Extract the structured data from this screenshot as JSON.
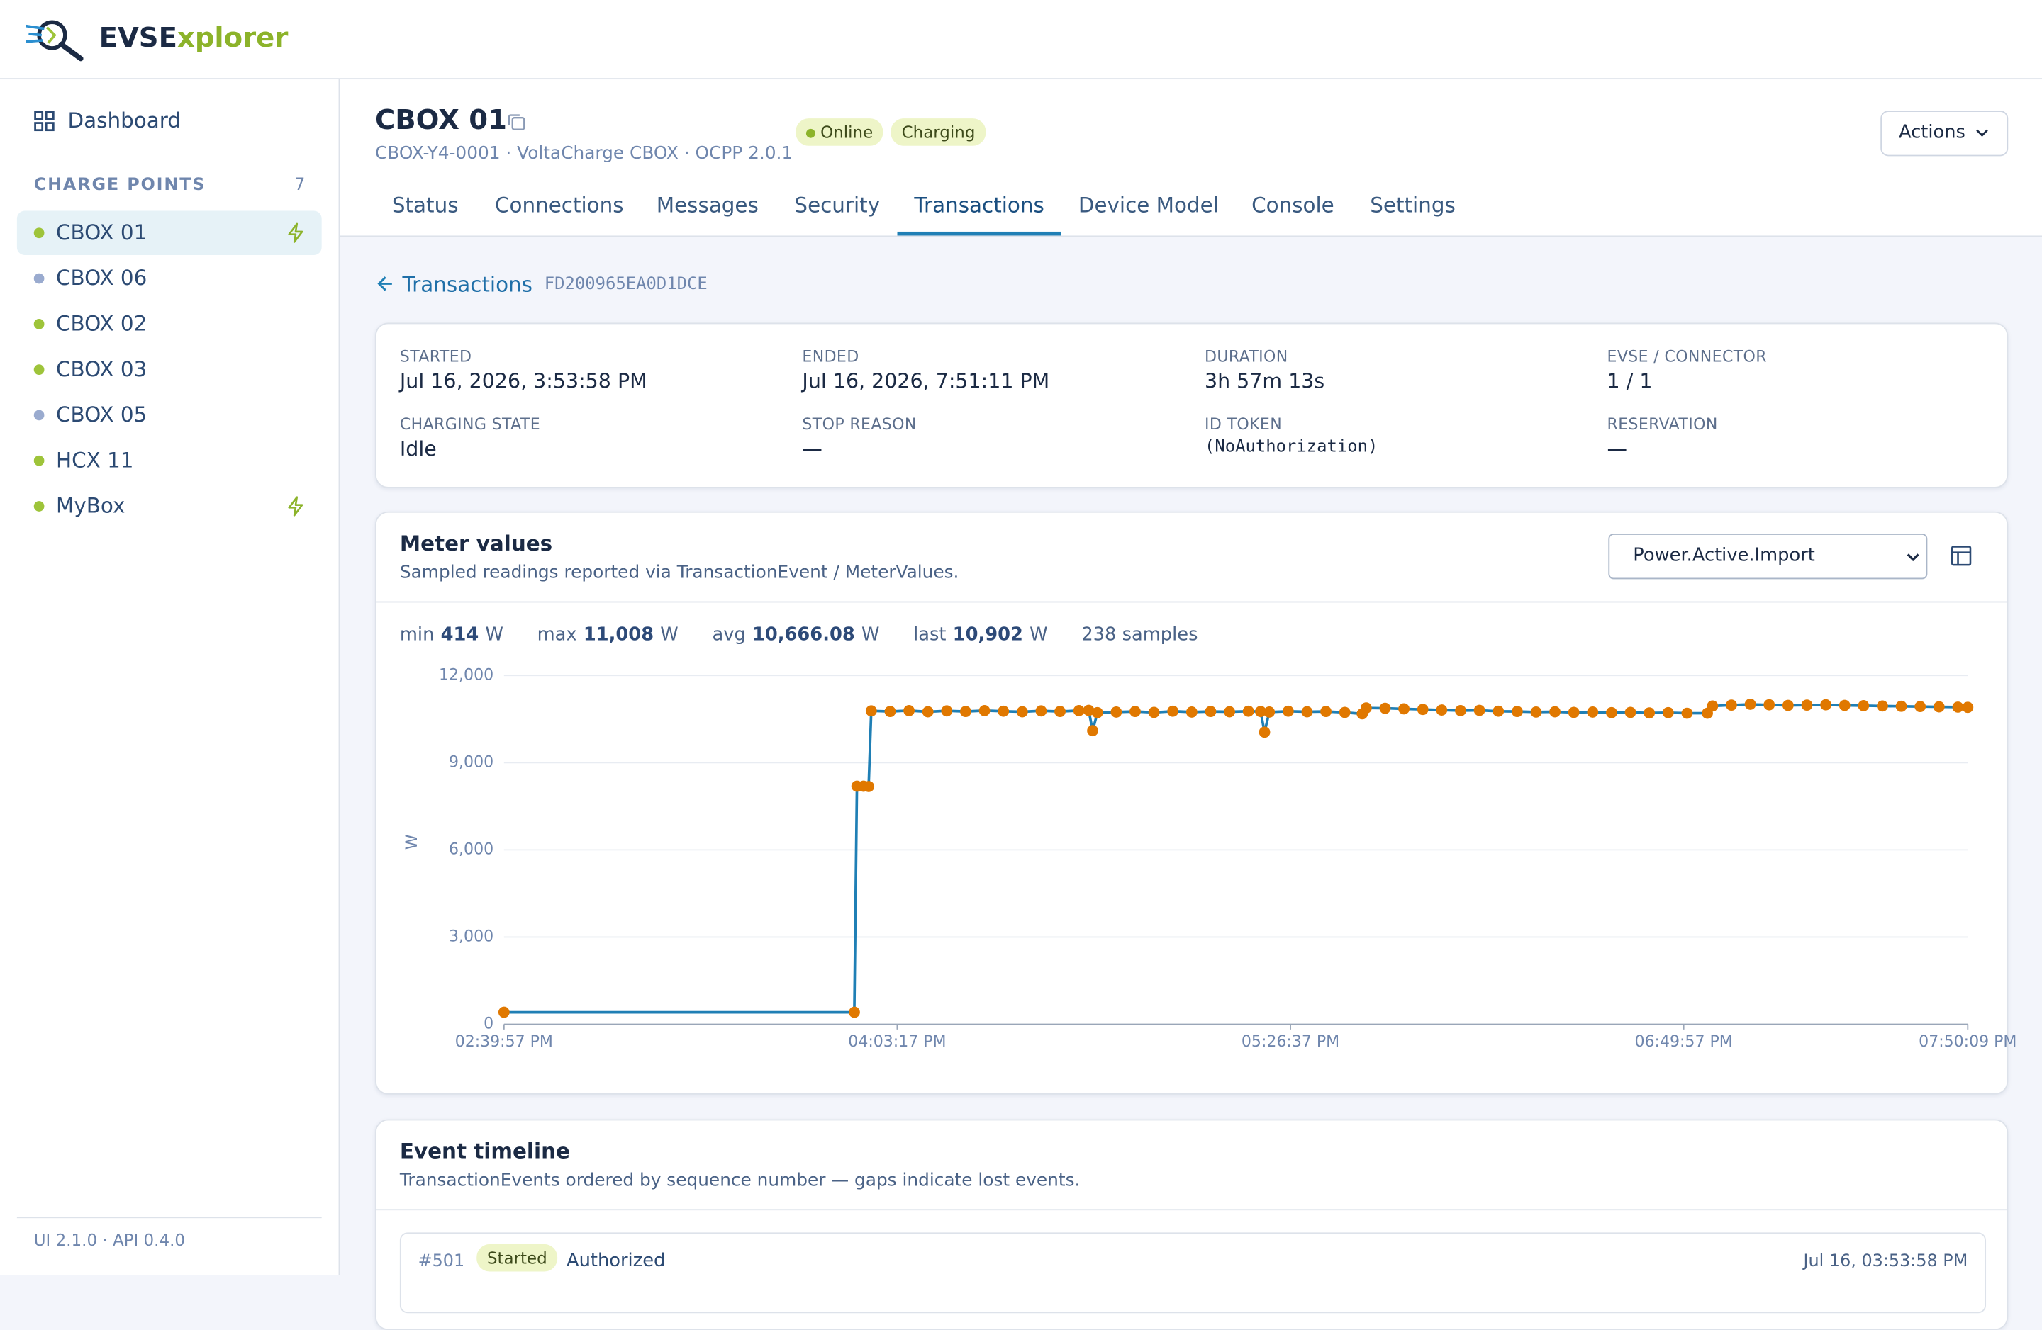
{
  "header": {
    "brand_a": "EVSE",
    "brand_b": "xplorer"
  },
  "sidebar": {
    "dashboard": "Dashboard",
    "section": "CHARGE POINTS",
    "count": 7,
    "items": [
      {
        "name": "CBOX 01",
        "dot_color": "#9ec43a",
        "charging": true,
        "active": true
      },
      {
        "name": "CBOX 06",
        "dot_color": "#9aabcf",
        "charging": false,
        "active": false
      },
      {
        "name": "CBOX 02",
        "dot_color": "#9ec43a",
        "charging": false,
        "active": false
      },
      {
        "name": "CBOX 03",
        "dot_color": "#9ec43a",
        "charging": false,
        "active": false
      },
      {
        "name": "CBOX 05",
        "dot_color": "#9aabcf",
        "charging": false,
        "active": false
      },
      {
        "name": "HCX 11",
        "dot_color": "#9ec43a",
        "charging": false,
        "active": false
      },
      {
        "name": "MyBox",
        "dot_color": "#9ec43a",
        "charging": true,
        "active": false
      }
    ],
    "footer": "UI 2.1.0 · API 0.4.0"
  },
  "page": {
    "title": "CBOX 01",
    "subtitle": "CBOX-Y4-0001 · VoltaCharge CBOX · OCPP 2.0.1",
    "badges": [
      "Online",
      "Charging"
    ],
    "actions": "Actions",
    "tabs": [
      "Status",
      "Connections",
      "Messages",
      "Security",
      "Transactions",
      "Device Model",
      "Console",
      "Settings"
    ],
    "active_tab": 4
  },
  "breadcrumb": {
    "back": "Transactions",
    "id": "FD200965EA0D1DCE"
  },
  "fields": [
    {
      "label": "STARTED",
      "value": "Jul 16, 2026, 3:53:58 PM"
    },
    {
      "label": "ENDED",
      "value": "Jul 16, 2026, 7:51:11 PM"
    },
    {
      "label": "DURATION",
      "value": "3h 57m 13s"
    },
    {
      "label": "EVSE / CONNECTOR",
      "value": "1 / 1"
    },
    {
      "label": "CHARGING STATE",
      "value": "Idle"
    },
    {
      "label": "STOP REASON",
      "value": "—"
    },
    {
      "label": "ID TOKEN",
      "value": "(NoAuthorization)",
      "mono": true
    },
    {
      "label": "RESERVATION",
      "value": "—"
    }
  ],
  "meter": {
    "title": "Meter values",
    "subtitle": "Sampled readings reported via TransactionEvent / MeterValues.",
    "select": "Power.Active.Import",
    "stats": [
      {
        "label": "min",
        "value": "414",
        "unit": "W"
      },
      {
        "label": "max",
        "value": "11,008",
        "unit": "W"
      },
      {
        "label": "avg",
        "value": "10,666.08",
        "unit": "W"
      },
      {
        "label": "last",
        "value": "10,902",
        "unit": "W"
      }
    ],
    "samples": "238 samples"
  },
  "chart_data": {
    "type": "line",
    "ylabel": "W",
    "color": "#1f7fb5",
    "marker_color": "#e07800",
    "grid": true,
    "xlim": [
      "02:39:57 PM",
      "07:50:09 PM"
    ],
    "xticks": [
      "02:39:57 PM",
      "04:03:17 PM",
      "05:26:37 PM",
      "06:49:57 PM",
      "07:50:09 PM"
    ],
    "ylim": [
      0,
      12000
    ],
    "yticks": [
      0,
      {
        "value": 3000,
        "label": "3,000"
      },
      {
        "value": 6000,
        "label": "6,000"
      },
      {
        "value": 9000,
        "label": "9,000"
      },
      {
        "value": 12000,
        "label": "12,000"
      }
    ],
    "x": [
      "02:39:57 PM",
      "03:54:12 PM",
      "03:54:45 PM",
      "03:56:08 PM",
      "03:57:14 PM",
      "03:57:47 PM",
      "04:01:47 PM",
      "04:05:47 PM",
      "04:09:47 PM",
      "04:13:47 PM",
      "04:17:47 PM",
      "04:21:47 PM",
      "04:25:47 PM",
      "04:29:47 PM",
      "04:33:47 PM",
      "04:37:47 PM",
      "04:41:47 PM",
      "04:43:52 PM",
      "04:44:42 PM",
      "04:45:42 PM",
      "04:49:42 PM",
      "04:53:42 PM",
      "04:57:42 PM",
      "05:01:42 PM",
      "05:05:42 PM",
      "05:09:42 PM",
      "05:13:42 PM",
      "05:17:42 PM",
      "05:20:18 PM",
      "05:21:08 PM",
      "05:22:08 PM",
      "05:26:08 PM",
      "05:30:08 PM",
      "05:34:08 PM",
      "05:38:08 PM",
      "05:41:50 PM",
      "05:42:40 PM",
      "05:46:40 PM",
      "05:50:40 PM",
      "05:54:40 PM",
      "05:58:40 PM",
      "06:02:40 PM",
      "06:06:40 PM",
      "06:10:40 PM",
      "06:14:40 PM",
      "06:18:40 PM",
      "06:22:40 PM",
      "06:26:40 PM",
      "06:30:40 PM",
      "06:34:40 PM",
      "06:38:40 PM",
      "06:42:40 PM",
      "06:46:40 PM",
      "06:50:40 PM",
      "06:54:58 PM",
      "06:56:04 PM",
      "07:00:04 PM",
      "07:04:04 PM",
      "07:08:04 PM",
      "07:12:04 PM",
      "07:16:04 PM",
      "07:20:04 PM",
      "07:24:04 PM",
      "07:28:04 PM",
      "07:32:04 PM",
      "07:36:04 PM",
      "07:40:04 PM",
      "07:44:04 PM",
      "07:48:04 PM",
      "07:50:09 PM"
    ],
    "values": [
      414,
      414,
      8190,
      8190,
      8180,
      10780,
      10760,
      10790,
      10750,
      10780,
      10760,
      10790,
      10770,
      10750,
      10780,
      10760,
      10790,
      10800,
      10100,
      10720,
      10740,
      10760,
      10730,
      10770,
      10740,
      10760,
      10750,
      10770,
      10760,
      10050,
      10740,
      10770,
      10750,
      10760,
      10730,
      10680,
      10880,
      10870,
      10850,
      10830,
      10810,
      10790,
      10800,
      10770,
      10760,
      10740,
      10750,
      10730,
      10740,
      10720,
      10730,
      10710,
      10720,
      10700,
      10700,
      10950,
      10980,
      11008,
      10990,
      10970,
      10980,
      10990,
      10970,
      10960,
      10950,
      10940,
      10930,
      10920,
      10910,
      10902
    ]
  },
  "timeline": {
    "title": "Event timeline",
    "subtitle": "TransactionEvents ordered by sequence number — gaps indicate lost events.",
    "events": [
      {
        "seq": "#501",
        "badge": "Started",
        "text": "Authorized",
        "time": "Jul 16, 03:53:58 PM"
      }
    ]
  }
}
